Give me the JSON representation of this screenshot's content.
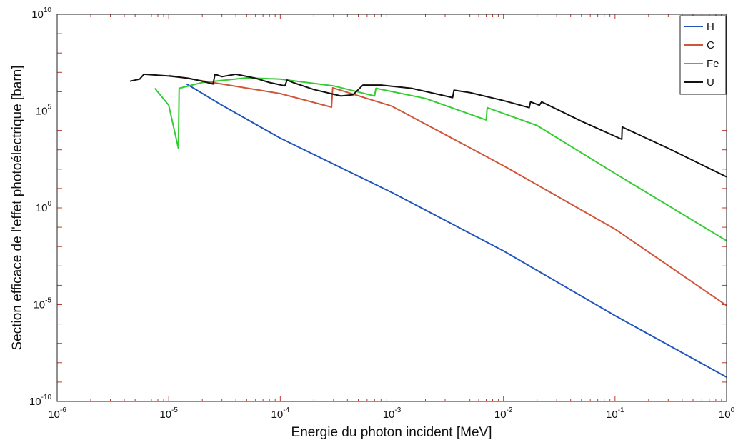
{
  "chart_data": {
    "type": "line",
    "xlabel": "Energie du photon incident [MeV]",
    "ylabel": "Section efficace de l'effet photoélectrique [barn]",
    "xscale": "log",
    "yscale": "log",
    "xlim": [
      1e-06,
      1
    ],
    "ylim": [
      1e-10,
      10000000000.0
    ],
    "x_ticks": [
      {
        "base": "10",
        "exp": "-6"
      },
      {
        "base": "10",
        "exp": "-5"
      },
      {
        "base": "10",
        "exp": "-4"
      },
      {
        "base": "10",
        "exp": "-3"
      },
      {
        "base": "10",
        "exp": "-2"
      },
      {
        "base": "10",
        "exp": "-1"
      },
      {
        "base": "10",
        "exp": "0"
      }
    ],
    "y_ticks": [
      {
        "base": "10",
        "exp": "-10"
      },
      {
        "base": "10",
        "exp": "-5"
      },
      {
        "base": "10",
        "exp": "0"
      },
      {
        "base": "10",
        "exp": "5"
      },
      {
        "base": "10",
        "exp": "10"
      }
    ],
    "grid": false,
    "legend": "top-right",
    "series": [
      {
        "name": "H",
        "color": "#2255bb",
        "points": [
          [
            1.45e-05,
            2500000.0
          ],
          [
            3e-05,
            200000.0
          ],
          [
            0.0001,
            4000.0
          ],
          [
            0.001,
            6.2
          ],
          [
            0.01,
            0.006
          ],
          [
            0.1,
            2.7e-06
          ],
          [
            1,
            1.8e-09
          ]
        ]
      },
      {
        "name": "C",
        "color": "#d0563a",
        "points": [
          [
            1e-05,
            7000000.0
          ],
          [
            3e-05,
            2500000.0
          ],
          [
            0.0001,
            800000.0
          ],
          [
            0.000288,
            160000.0
          ],
          [
            0.000295,
            1600000.0
          ],
          [
            0.001,
            180000.0
          ],
          [
            0.01,
            150.0
          ],
          [
            0.1,
            0.08
          ],
          [
            1,
            9e-06
          ]
        ]
      },
      {
        "name": "Fe",
        "color": "#33cc33",
        "points": [
          [
            7.5e-06,
            1500000.0
          ],
          [
            1e-05,
            200000.0
          ],
          [
            1.22e-05,
            1200.0
          ],
          [
            1.24e-05,
            1500000.0
          ],
          [
            2e-05,
            3000000.0
          ],
          [
            5e-05,
            5200000.0
          ],
          [
            0.0001,
            4500000.0
          ],
          [
            0.0003,
            2000000.0
          ],
          [
            0.0007,
            600000.0
          ],
          [
            0.00072,
            1500000.0
          ],
          [
            0.002,
            450000.0
          ],
          [
            0.007,
            35000.0
          ],
          [
            0.00715,
            150000.0
          ],
          [
            0.02,
            18000.0
          ],
          [
            0.1,
            60.0
          ],
          [
            1,
            0.02
          ]
        ]
      },
      {
        "name": "U",
        "color": "#111111",
        "points": [
          [
            4.5e-06,
            3500000.0
          ],
          [
            5.5e-06,
            4500000.0
          ],
          [
            6e-06,
            8000000.0
          ],
          [
            1e-05,
            6500000.0
          ],
          [
            1.5e-05,
            5000000.0
          ],
          [
            2e-05,
            3500000.0
          ],
          [
            2.5e-05,
            2500000.0
          ],
          [
            2.6e-05,
            8000000.0
          ],
          [
            3e-05,
            6000000.0
          ],
          [
            4e-05,
            8000000.0
          ],
          [
            6e-05,
            5000000.0
          ],
          [
            8e-05,
            3000000.0
          ],
          [
            0.00011,
            2000000.0
          ],
          [
            0.000115,
            4000000.0
          ],
          [
            0.00013,
            3000000.0
          ],
          [
            0.0002,
            1300000.0
          ],
          [
            0.00035,
            600000.0
          ],
          [
            0.00045,
            700000.0
          ],
          [
            0.00055,
            2200000.0
          ],
          [
            0.0008,
            2200000.0
          ],
          [
            0.0015,
            1500000.0
          ],
          [
            0.0035,
            500000.0
          ],
          [
            0.0036,
            1200000.0
          ],
          [
            0.005,
            900000.0
          ],
          [
            0.01,
            350000.0
          ],
          [
            0.017,
            150000.0
          ],
          [
            0.0175,
            300000.0
          ],
          [
            0.021,
            200000.0
          ],
          [
            0.022,
            300000.0
          ],
          [
            0.05,
            30000.0
          ],
          [
            0.115,
            3500.0
          ],
          [
            0.116,
            15000.0
          ],
          [
            0.3,
            1200.0
          ],
          [
            1,
            40.0
          ]
        ]
      }
    ]
  }
}
